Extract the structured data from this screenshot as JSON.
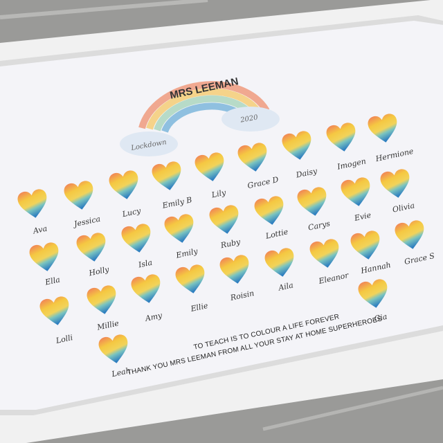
{
  "print": {
    "title": "MRS LEEMAN",
    "year": "2020",
    "subtitle": "Lockdown",
    "quote_line1": "TO TEACH IS TO COLOUR A LIFE FOREVER",
    "quote_line2": "THANK YOU MRS LEEMAN FROM ALL YOUR STAY AT HOME SUPERHEROES"
  },
  "names": [
    "Ava",
    "Jessica",
    "Lucy",
    "Emily B",
    "Lily",
    "Grace D",
    "Daisy",
    "Imogen",
    "Hermione",
    "Evie",
    "Olivia",
    "Carys",
    "Lottie",
    "Ruby",
    "Emily",
    "Isla",
    "Holly",
    "Ella",
    "Grace S",
    "Hannah",
    "Eleanor",
    "Aila",
    "Roisin",
    "Ellie",
    "Amy",
    "Millie",
    "Lolli",
    "Leah",
    "Gia"
  ],
  "colors": {
    "frame": "#f2f2f2",
    "paper": "#f4f4f8",
    "wood": "#9a9a98",
    "heart_top": "#f07a5a",
    "heart_mid": "#f5c842",
    "heart_bottom": "#2f7fc0"
  }
}
